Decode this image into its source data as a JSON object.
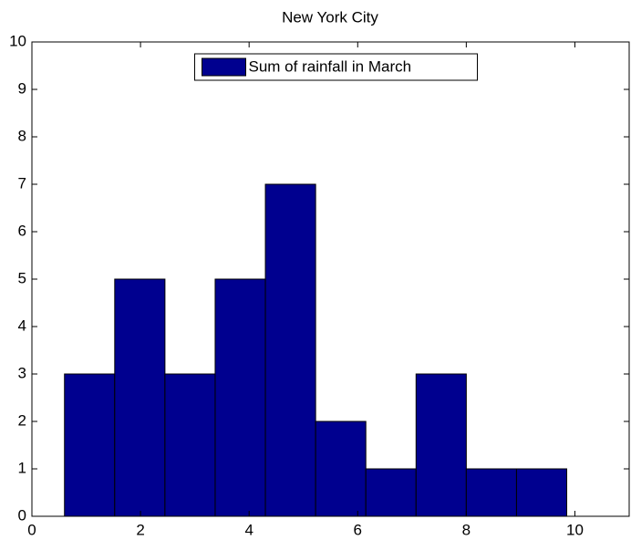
{
  "chart_data": {
    "type": "histogram",
    "title": "New York City",
    "bins": [
      0.6,
      1.525,
      2.45,
      3.375,
      4.3,
      5.225,
      6.15,
      7.075,
      8.0,
      8.925,
      9.85
    ],
    "series": [
      {
        "name": "Sum of rainfall in March",
        "color": "#00008f",
        "values": [
          3,
          5,
          3,
          5,
          7,
          2,
          1,
          3,
          1,
          1
        ]
      }
    ],
    "xlim": [
      0,
      11
    ],
    "xticks": [
      0,
      2,
      4,
      6,
      8,
      10
    ],
    "ylim": [
      0,
      10
    ],
    "yticks": [
      0,
      1,
      2,
      3,
      4,
      5,
      6,
      7,
      8,
      9,
      10
    ],
    "legend": "top"
  }
}
